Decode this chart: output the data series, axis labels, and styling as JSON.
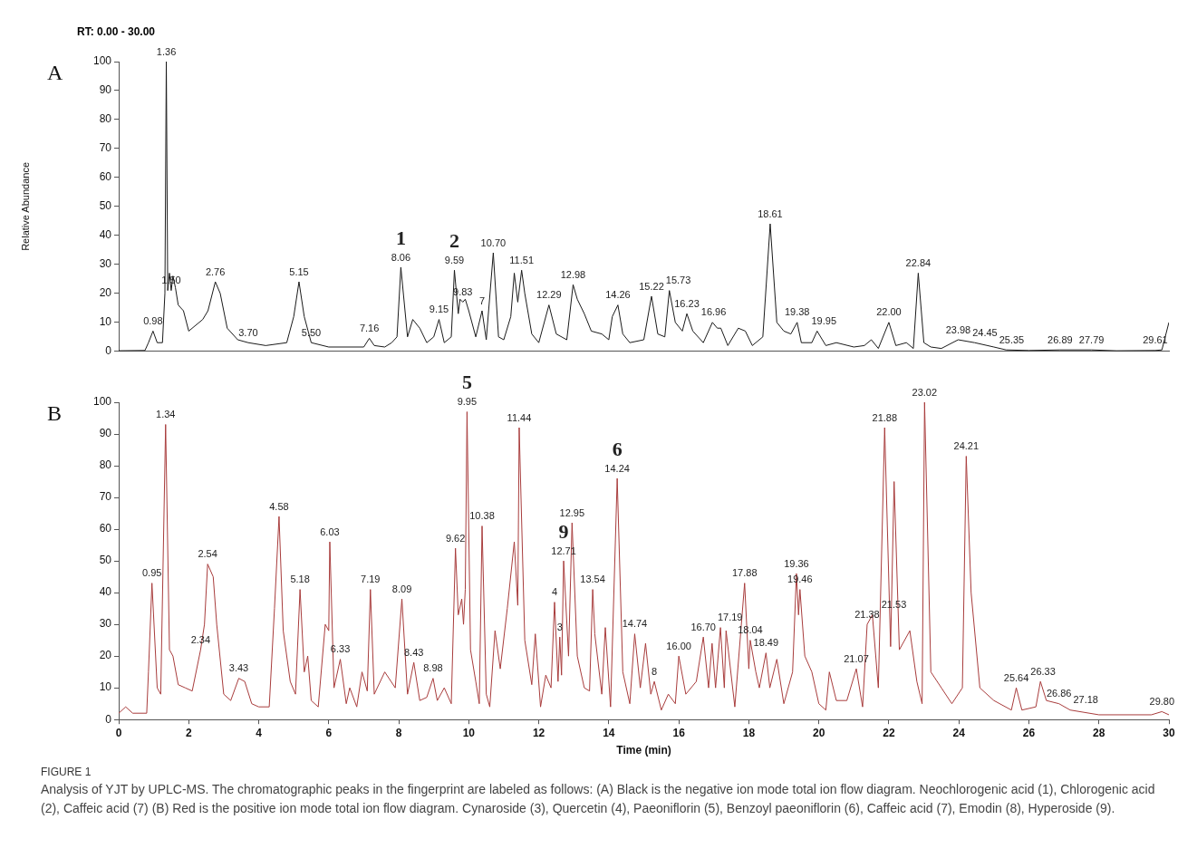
{
  "chart_data": [
    {
      "type": "line",
      "title": "A",
      "ylabel": "Relative Abundance",
      "xlim": [
        0,
        30
      ],
      "ylim": [
        0,
        100
      ],
      "yticks": [
        0,
        10,
        20,
        30,
        40,
        50,
        60,
        70,
        80,
        90,
        100
      ],
      "tick_labels": "y",
      "grid": false,
      "legend": false,
      "marker": "none",
      "series": [
        {
          "color": "#1a1a1a",
          "x": [
            0,
            0.75,
            0.85,
            0.98,
            1.1,
            1.25,
            1.32,
            1.36,
            1.4,
            1.45,
            1.5,
            1.55,
            1.62,
            1.7,
            1.85,
            2,
            2.2,
            2.4,
            2.55,
            2.76,
            2.9,
            3.1,
            3.4,
            3.7,
            4.2,
            4.8,
            5,
            5.15,
            5.3,
            5.5,
            6,
            7,
            7.16,
            7.3,
            7.6,
            7.8,
            7.95,
            8.06,
            8.25,
            8.4,
            8.6,
            8.8,
            9,
            9.15,
            9.3,
            9.5,
            9.59,
            9.7,
            9.75,
            9.83,
            9.9,
            10,
            10.2,
            10.38,
            10.5,
            10.7,
            10.85,
            11,
            11.2,
            11.3,
            11.4,
            11.51,
            11.6,
            11.8,
            12,
            12.29,
            12.5,
            12.8,
            12.98,
            13.1,
            13.3,
            13.5,
            13.8,
            14,
            14.1,
            14.26,
            14.4,
            14.6,
            15,
            15.22,
            15.4,
            15.6,
            15.73,
            15.9,
            16.1,
            16.23,
            16.4,
            16.7,
            16.96,
            17.1,
            17.2,
            17.4,
            17.7,
            17.9,
            18.1,
            18.4,
            18.61,
            18.8,
            19,
            19.2,
            19.38,
            19.5,
            19.8,
            19.95,
            20.2,
            20.5,
            21,
            21.3,
            21.5,
            21.7,
            22,
            22.2,
            22.5,
            22.7,
            22.84,
            23,
            23.2,
            23.5,
            23.98,
            24.45,
            25,
            25.35,
            26,
            26.89,
            27.79,
            28.5,
            29.61,
            29.8,
            30
          ],
          "values": [
            0.2,
            0.3,
            3,
            7,
            3,
            3,
            20,
            100,
            21,
            27,
            21,
            26,
            22,
            16,
            14,
            7,
            9,
            11,
            14,
            24,
            20,
            8,
            4,
            3,
            2,
            3,
            12,
            24,
            12,
            3,
            1.5,
            1.5,
            4.5,
            2,
            1.5,
            3,
            5,
            29,
            5,
            11,
            8,
            3,
            5,
            11,
            3,
            5,
            28,
            13,
            18,
            17,
            18,
            14,
            5,
            14,
            4,
            34,
            5,
            4,
            12,
            27,
            17,
            28,
            20,
            6,
            3,
            16,
            6,
            4,
            23,
            18,
            13,
            7,
            6,
            4,
            12,
            16,
            6,
            3,
            4,
            19,
            6,
            5,
            21,
            10,
            7,
            13,
            7,
            3,
            10,
            8,
            8,
            2,
            8,
            7,
            2,
            5,
            44,
            10,
            7,
            6,
            10,
            3,
            3,
            7,
            2,
            3,
            1.5,
            2,
            4,
            1,
            10,
            2,
            3,
            1,
            27,
            3,
            1.5,
            1,
            4,
            3,
            1.5,
            0.5,
            0.3,
            0.5,
            0.5,
            0.2,
            0.3,
            0.5,
            10
          ]
        }
      ],
      "annotations": [
        "RT: 0.00 - 30.00",
        {
          "text": "0.98",
          "x": 0.98,
          "y": 7
        },
        {
          "text": "1.36",
          "x": 1.36,
          "y": 100
        },
        {
          "text": "1.50",
          "x": 1.5,
          "y": 21
        },
        {
          "text": "2.76",
          "x": 2.76,
          "y": 24
        },
        {
          "text": "3.70",
          "x": 3.7,
          "y": 3
        },
        {
          "text": "5.15",
          "x": 5.15,
          "y": 24
        },
        {
          "text": "5.50",
          "x": 5.5,
          "y": 3
        },
        {
          "text": "7.16",
          "x": 7.16,
          "y": 4.5
        },
        {
          "text": "8.06",
          "x": 8.06,
          "y": 29
        },
        {
          "text": "1",
          "x": 8.06,
          "y": 29
        },
        {
          "text": "9.15",
          "x": 9.15,
          "y": 11
        },
        {
          "text": "9.59",
          "x": 9.59,
          "y": 28
        },
        {
          "text": "2",
          "x": 9.59,
          "y": 28
        },
        {
          "text": "9.83",
          "x": 9.83,
          "y": 17
        },
        {
          "text": "7",
          "x": 10.38,
          "y": 14
        },
        {
          "text": "10.70",
          "x": 10.7,
          "y": 34
        },
        {
          "text": "11.51",
          "x": 11.51,
          "y": 28
        },
        {
          "text": "12.29",
          "x": 12.29,
          "y": 16
        },
        {
          "text": "12.98",
          "x": 12.98,
          "y": 23
        },
        {
          "text": "14.26",
          "x": 14.26,
          "y": 16
        },
        {
          "text": "15.22",
          "x": 15.22,
          "y": 19
        },
        {
          "text": "15.73",
          "x": 15.73,
          "y": 21
        },
        {
          "text": "16.23",
          "x": 16.23,
          "y": 13
        },
        {
          "text": "16.96",
          "x": 16.96,
          "y": 10
        },
        {
          "text": "18.61",
          "x": 18.61,
          "y": 44
        },
        {
          "text": "19.38",
          "x": 19.38,
          "y": 10
        },
        {
          "text": "19.95",
          "x": 19.95,
          "y": 7
        },
        {
          "text": "22.00",
          "x": 22,
          "y": 10
        },
        {
          "text": "22.84",
          "x": 22.84,
          "y": 27
        },
        {
          "text": "23.98",
          "x": 23.98,
          "y": 4
        },
        {
          "text": "24.45",
          "x": 24.45,
          "y": 3
        },
        {
          "text": "25.35",
          "x": 25.35,
          "y": 0.5
        },
        {
          "text": "26.89",
          "x": 26.89,
          "y": 0.5
        },
        {
          "text": "27.79",
          "x": 27.79,
          "y": 0.5
        },
        {
          "text": "29.61",
          "x": 29.61,
          "y": 0.3
        }
      ]
    },
    {
      "type": "line",
      "title": "B",
      "xlabel": "Time (min)",
      "xlim": [
        0,
        30
      ],
      "ylim": [
        0,
        100
      ],
      "xticks": [
        0,
        2,
        4,
        6,
        8,
        10,
        12,
        14,
        16,
        18,
        20,
        22,
        24,
        26,
        28,
        30
      ],
      "yticks": [
        0,
        10,
        20,
        30,
        40,
        50,
        60,
        70,
        80,
        90,
        100
      ],
      "grid": false,
      "legend": false,
      "marker": "none",
      "series": [
        {
          "color": "#a83c3c",
          "x": [
            0,
            0.2,
            0.4,
            0.8,
            0.85,
            0.95,
            1.1,
            1.2,
            1.34,
            1.45,
            1.55,
            1.7,
            1.9,
            2.1,
            2.34,
            2.45,
            2.54,
            2.7,
            2.8,
            3,
            3.2,
            3.43,
            3.6,
            3.8,
            4,
            4.3,
            4.45,
            4.58,
            4.7,
            4.9,
            5.05,
            5.18,
            5.3,
            5.4,
            5.5,
            5.7,
            5.9,
            6,
            6.03,
            6.15,
            6.33,
            6.5,
            6.6,
            6.8,
            6.95,
            7.1,
            7.19,
            7.3,
            7.6,
            7.9,
            8.09,
            8.25,
            8.43,
            8.6,
            8.8,
            8.98,
            9.1,
            9.3,
            9.5,
            9.62,
            9.7,
            9.8,
            9.85,
            9.9,
            9.95,
            10.05,
            10.2,
            10.3,
            10.38,
            10.5,
            10.6,
            10.75,
            10.9,
            11.1,
            11.3,
            11.4,
            11.44,
            11.6,
            11.8,
            11.9,
            12.05,
            12.2,
            12.35,
            12.45,
            12.55,
            12.6,
            12.65,
            12.71,
            12.85,
            12.95,
            13.1,
            13.3,
            13.45,
            13.54,
            13.6,
            13.8,
            13.9,
            14.05,
            14.24,
            14.4,
            14.6,
            14.74,
            14.9,
            15.05,
            15.2,
            15.3,
            15.5,
            15.7,
            15.9,
            16,
            16.2,
            16.5,
            16.7,
            16.85,
            16.95,
            17.05,
            17.19,
            17.3,
            17.35,
            17.6,
            17.88,
            18,
            18.04,
            18.2,
            18.3,
            18.49,
            18.6,
            18.8,
            19,
            19.25,
            19.36,
            19.42,
            19.46,
            19.6,
            19.8,
            20,
            20.2,
            20.3,
            20.5,
            20.8,
            21.07,
            21.25,
            21.38,
            21.53,
            21.7,
            21.88,
            22.05,
            22.15,
            22.3,
            22.6,
            22.8,
            22.95,
            23.02,
            23.2,
            23.5,
            23.8,
            24.1,
            24.21,
            24.35,
            24.6,
            25,
            25.5,
            25.64,
            25.8,
            26.2,
            26.33,
            26.5,
            26.86,
            27.18,
            28,
            29.5,
            29.8,
            30
          ],
          "values": [
            2,
            4,
            2,
            2,
            15,
            43,
            10,
            8,
            93,
            22,
            20,
            11,
            10,
            9,
            22,
            30,
            49,
            45,
            30,
            8,
            6,
            13,
            12,
            5,
            4,
            4,
            35,
            64,
            28,
            12,
            8,
            41,
            15,
            20,
            6,
            4,
            30,
            28,
            56,
            10,
            19,
            5,
            10,
            4,
            15,
            9,
            41,
            8,
            15,
            10,
            38,
            8,
            18,
            6,
            7,
            13,
            6,
            10,
            5,
            54,
            33,
            38,
            30,
            41,
            97,
            22,
            12,
            5,
            61,
            8,
            4,
            28,
            16,
            35,
            56,
            36,
            92,
            25,
            11,
            27,
            4,
            14,
            10,
            37,
            12,
            26,
            14,
            50,
            20,
            62,
            20,
            10,
            9,
            41,
            27,
            8,
            29,
            4,
            76,
            15,
            5,
            27,
            10,
            24,
            8,
            12,
            3,
            8,
            5,
            20,
            8,
            12,
            26,
            10,
            24,
            10,
            29,
            10,
            28,
            4,
            43,
            16,
            25,
            15,
            10,
            21,
            10,
            19,
            5,
            15,
            46,
            33,
            41,
            20,
            15,
            5,
            3,
            15,
            6,
            6,
            16,
            4,
            30,
            33,
            10,
            92,
            23,
            75,
            22,
            28,
            12,
            5,
            100,
            15,
            10,
            5,
            10,
            83,
            40,
            10,
            6,
            3,
            10,
            3,
            4,
            12,
            6,
            5,
            3,
            1.5,
            1.5,
            2.5,
            1.5
          ]
        }
      ],
      "annotations": [
        {
          "text": "0.95",
          "x": 0.95,
          "y": 43
        },
        {
          "text": "1.34",
          "x": 1.34,
          "y": 93
        },
        {
          "text": "2.34",
          "x": 2.34,
          "y": 22
        },
        {
          "text": "2.54",
          "x": 2.54,
          "y": 49
        },
        {
          "text": "3.43",
          "x": 3.43,
          "y": 13
        },
        {
          "text": "4.58",
          "x": 4.58,
          "y": 64
        },
        {
          "text": "5.18",
          "x": 5.18,
          "y": 41
        },
        {
          "text": "6.03",
          "x": 6.03,
          "y": 56
        },
        {
          "text": "6.33",
          "x": 6.33,
          "y": 19
        },
        {
          "text": "7.19",
          "x": 7.19,
          "y": 41
        },
        {
          "text": "8.09",
          "x": 8.09,
          "y": 38
        },
        {
          "text": "8.43",
          "x": 8.43,
          "y": 18
        },
        {
          "text": "8.98",
          "x": 8.98,
          "y": 13
        },
        {
          "text": "9.62",
          "x": 9.62,
          "y": 54
        },
        {
          "text": "9.95",
          "x": 9.95,
          "y": 97
        },
        {
          "text": "5",
          "x": 9.95,
          "y": 97
        },
        {
          "text": "10.38",
          "x": 10.38,
          "y": 61
        },
        {
          "text": "11.44",
          "x": 11.44,
          "y": 92
        },
        {
          "text": "3",
          "x": 12.6,
          "y": 26
        },
        {
          "text": "4",
          "x": 12.45,
          "y": 37
        },
        {
          "text": "12.71",
          "x": 12.71,
          "y": 50
        },
        {
          "text": "9",
          "x": 12.71,
          "y": 50
        },
        {
          "text": "12.95",
          "x": 12.95,
          "y": 62
        },
        {
          "text": "13.54",
          "x": 13.54,
          "y": 41
        },
        {
          "text": "14.24",
          "x": 14.24,
          "y": 76
        },
        {
          "text": "6",
          "x": 14.24,
          "y": 76
        },
        {
          "text": "14.74",
          "x": 14.74,
          "y": 27
        },
        {
          "text": "8",
          "x": 15.3,
          "y": 12
        },
        {
          "text": "16.00",
          "x": 16,
          "y": 20
        },
        {
          "text": "16.70",
          "x": 16.7,
          "y": 26
        },
        {
          "text": "17.19",
          "x": 17.19,
          "y": 29
        },
        {
          "text": "17.88",
          "x": 17.88,
          "y": 43
        },
        {
          "text": "18.04",
          "x": 18.04,
          "y": 25
        },
        {
          "text": "18.49",
          "x": 18.49,
          "y": 21
        },
        {
          "text": "19.36",
          "x": 19.36,
          "y": 46
        },
        {
          "text": "19.46",
          "x": 19.46,
          "y": 41
        },
        {
          "text": "21.07",
          "x": 21.07,
          "y": 16
        },
        {
          "text": "21.38",
          "x": 21.38,
          "y": 30
        },
        {
          "text": "21.53",
          "x": 21.53,
          "y": 33
        },
        {
          "text": "21.88",
          "x": 21.88,
          "y": 92
        },
        {
          "text": "23.02",
          "x": 23.02,
          "y": 100
        },
        {
          "text": "24.21",
          "x": 24.21,
          "y": 83
        },
        {
          "text": "25.64",
          "x": 25.64,
          "y": 10
        },
        {
          "text": "26.33",
          "x": 26.33,
          "y": 12
        },
        {
          "text": "26.86",
          "x": 26.86,
          "y": 5
        },
        {
          "text": "27.18",
          "x": 27.18,
          "y": 3
        },
        {
          "text": "29.80",
          "x": 29.8,
          "y": 2.5
        },
        "FIGURE 1",
        "Analysis of YJT by UPLC-MS. The chromatographic peaks in the fingerprint are labeled as follows: (A) Black is the negative ion mode total ion flow diagram. Neochlorogenic acid (1), Chlorogenic acid (2), Caffeic acid (7) (B) Red is the positive ion mode total ion flow diagram. Cynaroside (3), Quercetin (4), Paeoniflorin (5), Benzoyl paeoniflorin (6), Caffeic acid (7), Emodin (8), Hyperoside (9)."
      ]
    }
  ]
}
